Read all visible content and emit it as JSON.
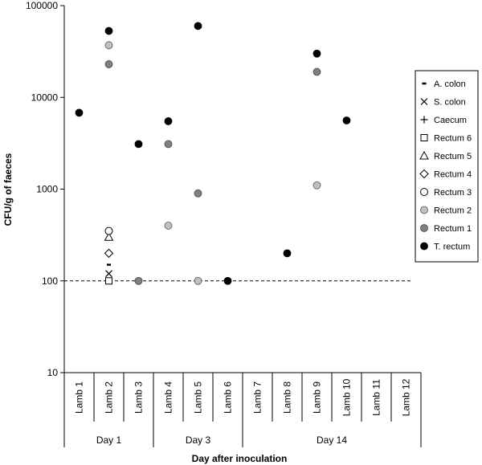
{
  "chart_data": {
    "type": "scatter",
    "title": "",
    "xlabel": "Day after inoculation",
    "ylabel": "CFU/g of faeces",
    "yscale": "log",
    "ylim": [
      10,
      100000
    ],
    "yticks": [
      "10",
      "100",
      "1000",
      "10000",
      "100000"
    ],
    "categories": [
      "Lamb 1",
      "Lamb 2",
      "Lamb 3",
      "Lamb 4",
      "Lamb 5",
      "Lamb 6",
      "Lamb 7",
      "Lamb 8",
      "Lamb 9",
      "Lamb 10",
      "Lamb 11",
      "Lamb 12"
    ],
    "groups": [
      {
        "label": "Day 1",
        "span": [
          0,
          2
        ]
      },
      {
        "label": "Day 3",
        "span": [
          3,
          5
        ]
      },
      {
        "label": "Day 14",
        "span": [
          6,
          11
        ]
      }
    ],
    "reference_line": {
      "y": 100,
      "style": "dashed"
    },
    "legend_position": "right",
    "series": [
      {
        "name": "A. colon",
        "marker": "dash",
        "points": [
          {
            "x": "Lamb 2",
            "y": 150
          }
        ]
      },
      {
        "name": "S. colon",
        "marker": "x",
        "points": [
          {
            "x": "Lamb 2",
            "y": 120
          }
        ]
      },
      {
        "name": "Caecum",
        "marker": "plus",
        "points": [
          {
            "x": "Lamb 2",
            "y": 200
          }
        ]
      },
      {
        "name": "Rectum 6",
        "marker": "square-open",
        "points": [
          {
            "x": "Lamb 2",
            "y": 100
          }
        ]
      },
      {
        "name": "Rectum 5",
        "marker": "triangle-open",
        "points": [
          {
            "x": "Lamb 2",
            "y": 300
          }
        ]
      },
      {
        "name": "Rectum 4",
        "marker": "diamond-open",
        "points": [
          {
            "x": "Lamb 2",
            "y": 200
          }
        ]
      },
      {
        "name": "Rectum 3",
        "marker": "circle-open",
        "points": [
          {
            "x": "Lamb 2",
            "y": 350
          }
        ]
      },
      {
        "name": "Rectum 2",
        "marker": "circle-lightgray",
        "points": [
          {
            "x": "Lamb 2",
            "y": 37000
          },
          {
            "x": "Lamb 4",
            "y": 400
          },
          {
            "x": "Lamb 5",
            "y": 100
          },
          {
            "x": "Lamb 9",
            "y": 1100
          }
        ]
      },
      {
        "name": "Rectum 1",
        "marker": "circle-darkgray",
        "points": [
          {
            "x": "Lamb 2",
            "y": 23000
          },
          {
            "x": "Lamb 3",
            "y": 100
          },
          {
            "x": "Lamb 4",
            "y": 3100
          },
          {
            "x": "Lamb 5",
            "y": 900
          },
          {
            "x": "Lamb 9",
            "y": 19000
          }
        ]
      },
      {
        "name": "T. rectum",
        "marker": "circle-black",
        "points": [
          {
            "x": "Lamb 1",
            "y": 6800
          },
          {
            "x": "Lamb 2",
            "y": 53000
          },
          {
            "x": "Lamb 3",
            "y": 3100
          },
          {
            "x": "Lamb 4",
            "y": 5500
          },
          {
            "x": "Lamb 5",
            "y": 60000
          },
          {
            "x": "Lamb 6",
            "y": 100
          },
          {
            "x": "Lamb 8",
            "y": 200
          },
          {
            "x": "Lamb 9",
            "y": 30000
          },
          {
            "x": "Lamb 10",
            "y": 5600
          }
        ]
      }
    ]
  },
  "colors": {
    "open": "#ffffff",
    "lightgray": "#c0c0c0",
    "darkgray": "#7f7f7f",
    "black": "#000000"
  }
}
